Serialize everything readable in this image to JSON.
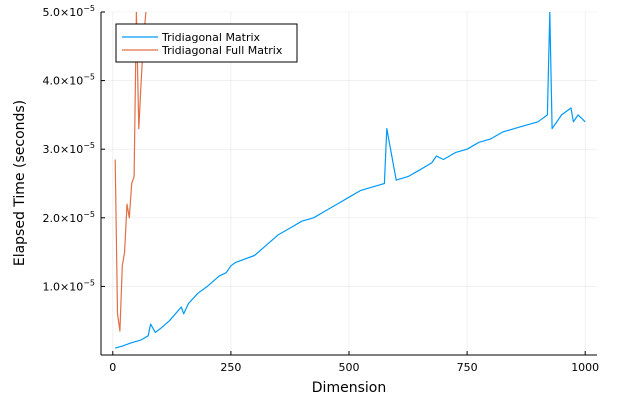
{
  "chart_data": {
    "type": "line",
    "title": "",
    "xlabel": "Dimension",
    "ylabel": "Elapsed Time (seconds)",
    "xlim": [
      -25,
      1025
    ],
    "ylim": [
      0.0,
      5e-05
    ],
    "x_ticks": [
      0,
      250,
      500,
      750,
      1000
    ],
    "x_tick_labels": [
      "0",
      "250",
      "500",
      "750",
      "1000"
    ],
    "y_ticks": [
      1e-05,
      2e-05,
      3e-05,
      4e-05,
      5e-05
    ],
    "y_tick_labels": [
      {
        "mantissa": "1.0",
        "base": "×10",
        "exp": "−5"
      },
      {
        "mantissa": "2.0",
        "base": "×10",
        "exp": "−5"
      },
      {
        "mantissa": "3.0",
        "base": "×10",
        "exp": "−5"
      },
      {
        "mantissa": "4.0",
        "base": "×10",
        "exp": "−5"
      },
      {
        "mantissa": "5.0",
        "base": "×10",
        "exp": "−5"
      }
    ],
    "grid": true,
    "legend_position": "top-left",
    "series": [
      {
        "name": "Tridiagonal Matrix",
        "color": "#009af9",
        "x": [
          5,
          20,
          40,
          60,
          75,
          80,
          90,
          100,
          120,
          145,
          150,
          160,
          180,
          200,
          225,
          240,
          250,
          260,
          300,
          325,
          350,
          375,
          400,
          425,
          450,
          475,
          500,
          525,
          550,
          575,
          580,
          600,
          625,
          650,
          675,
          685,
          700,
          725,
          750,
          775,
          800,
          825,
          850,
          875,
          900,
          920,
          925,
          930,
          950,
          970,
          975,
          985,
          1000
        ],
        "y": [
          1e-06,
          1.3e-06,
          1.8e-06,
          2.2e-06,
          2.8e-06,
          4.5e-06,
          3.3e-06,
          3.8e-06,
          5e-06,
          7e-06,
          6e-06,
          7.5e-06,
          9e-06,
          1e-05,
          1.15e-05,
          1.2e-05,
          1.3e-05,
          1.35e-05,
          1.45e-05,
          1.6e-05,
          1.75e-05,
          1.85e-05,
          1.95e-05,
          2e-05,
          2.1e-05,
          2.2e-05,
          2.3e-05,
          2.4e-05,
          2.45e-05,
          2.5e-05,
          3.3e-05,
          2.55e-05,
          2.6e-05,
          2.7e-05,
          2.8e-05,
          2.9e-05,
          2.85e-05,
          2.95e-05,
          3e-05,
          3.1e-05,
          3.15e-05,
          3.25e-05,
          3.3e-05,
          3.35e-05,
          3.4e-05,
          3.5e-05,
          5e-05,
          3.3e-05,
          3.5e-05,
          3.6e-05,
          3.4e-05,
          3.5e-05,
          3.4e-05
        ]
      },
      {
        "name": "Tridiagonal Full Matrix",
        "color": "#e26f46",
        "x": [
          5,
          10,
          15,
          20,
          25,
          30,
          35,
          40,
          45,
          50,
          55,
          60,
          65,
          70
        ],
        "y": [
          2.85e-05,
          6e-06,
          3.5e-06,
          1.3e-05,
          1.5e-05,
          2.2e-05,
          2e-05,
          2.5e-05,
          2.6e-05,
          5e-05,
          3.3e-05,
          4e-05,
          4.6e-05,
          5e-05
        ]
      }
    ]
  }
}
